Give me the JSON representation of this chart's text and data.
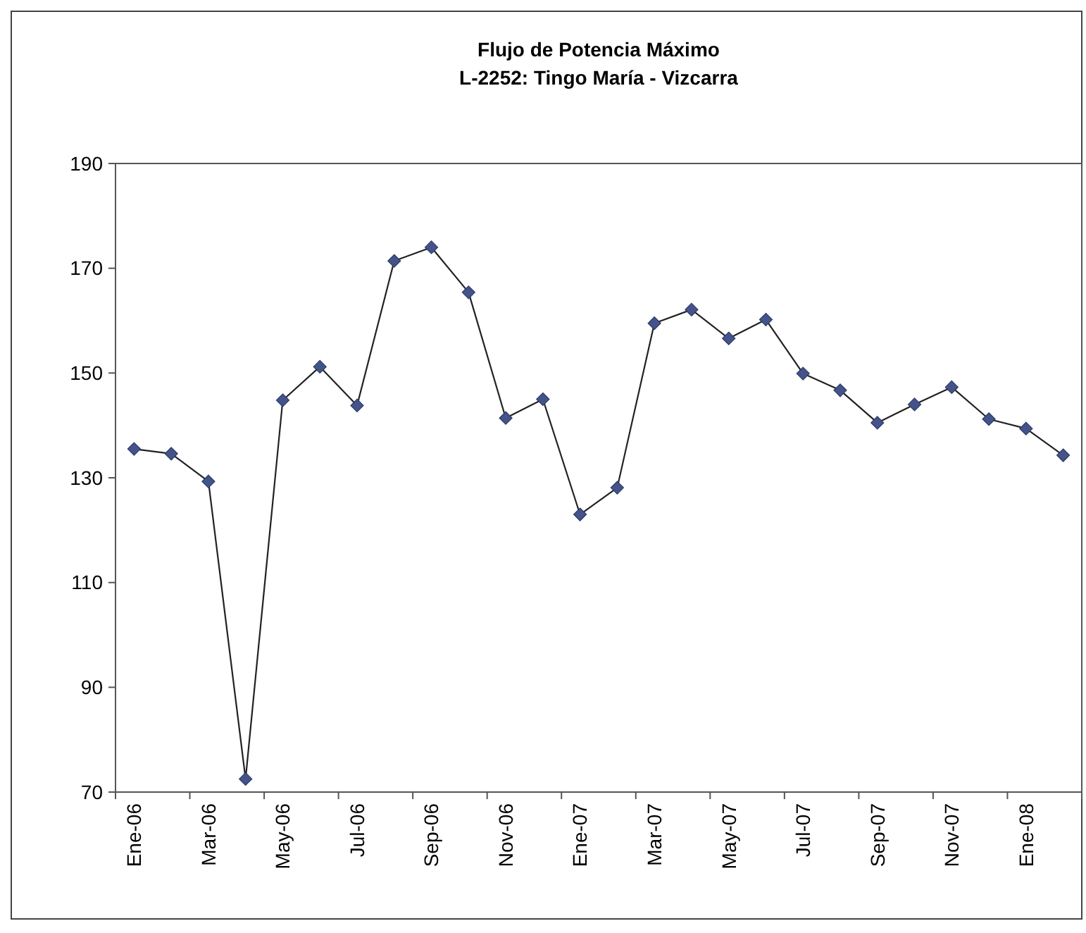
{
  "chart_data": {
    "type": "line",
    "title": "Flujo de Potencia Máximo",
    "subtitle": "L-2252: Tingo María - Vizcarra",
    "categories": [
      "Ene-06",
      null,
      "Mar-06",
      null,
      "May-06",
      null,
      "Jul-06",
      null,
      "Sep-06",
      null,
      "Nov-06",
      null,
      "Ene-07",
      null,
      "Mar-07",
      null,
      "May-07",
      null,
      "Jul-07",
      null,
      "Sep-07",
      null,
      "Nov-07",
      null,
      "Ene-08",
      null
    ],
    "series": [
      {
        "color": "#44548a",
        "values": [
          135.5,
          134.6,
          129.3,
          72.5,
          144.8,
          151.2,
          143.8,
          171.4,
          174,
          165.4,
          141.4,
          145,
          123,
          128.1,
          159.5,
          162.1,
          156.6,
          160.2,
          149.9,
          146.7,
          140.5,
          144,
          147.3,
          141.2,
          139.4,
          134.3
        ]
      }
    ],
    "ylim": [
      70,
      190
    ],
    "yticks": [
      70,
      90,
      110,
      130,
      150,
      170,
      190
    ],
    "grid": false,
    "marker": "diamond",
    "line_style": "solid"
  }
}
